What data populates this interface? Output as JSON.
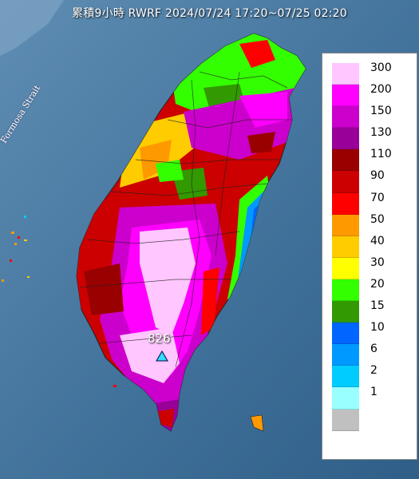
{
  "title": "累積9小時 RWRF 2024/07/24 17:20~07/25 02:20",
  "sea_label": "Formosa Strait",
  "max_value_label": "826",
  "legend": [
    {
      "label": "300",
      "color": "#ffc6ff"
    },
    {
      "label": "200",
      "color": "#ff00ff"
    },
    {
      "label": "150",
      "color": "#cc00cc"
    },
    {
      "label": "130",
      "color": "#990099"
    },
    {
      "label": "110",
      "color": "#990000"
    },
    {
      "label": "90",
      "color": "#cc0000"
    },
    {
      "label": "70",
      "color": "#ff0000"
    },
    {
      "label": "50",
      "color": "#ff9900"
    },
    {
      "label": "40",
      "color": "#ffcc00"
    },
    {
      "label": "30",
      "color": "#ffff00"
    },
    {
      "label": "20",
      "color": "#33ff00"
    },
    {
      "label": "15",
      "color": "#339900"
    },
    {
      "label": "10",
      "color": "#0066ff"
    },
    {
      "label": "6",
      "color": "#0099ff"
    },
    {
      "label": "2",
      "color": "#00ccff"
    },
    {
      "label": "1",
      "color": "#99ffff"
    },
    {
      "label": "",
      "color": "#c0c0c0"
    }
  ]
}
